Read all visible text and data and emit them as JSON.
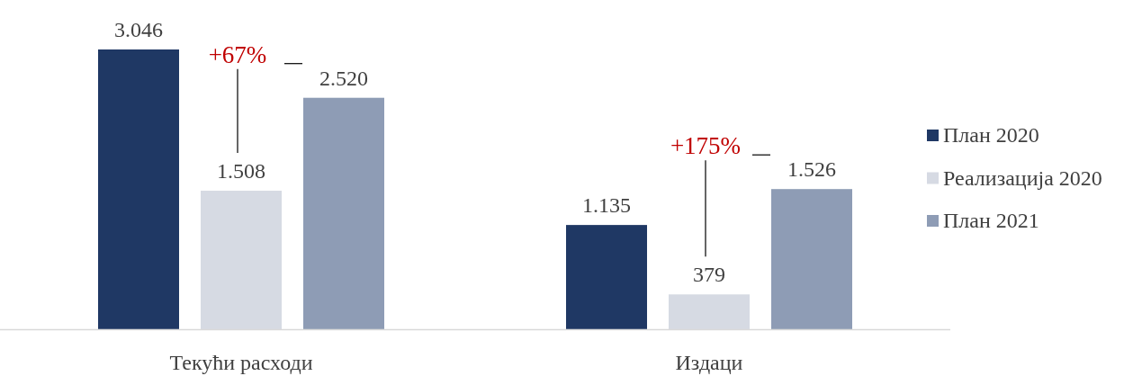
{
  "chart_data": {
    "type": "bar",
    "categories": [
      "Текући расходи",
      "Издаци"
    ],
    "series": [
      {
        "name": "План 2020",
        "color": "#1f3864",
        "values": [
          3046,
          1135
        ],
        "value_labels": [
          "3.046",
          "1.135"
        ]
      },
      {
        "name": "Реализација 2020",
        "color": "#d6dae3",
        "values": [
          1508,
          379
        ],
        "value_labels": [
          "1.508",
          "379"
        ]
      },
      {
        "name": "План 2021",
        "color": "#8e9cb5",
        "values": [
          2520,
          1526
        ],
        "value_labels": [
          "2.520",
          "1.526"
        ]
      }
    ],
    "annotations": [
      "+67%",
      "+175%"
    ],
    "legend": "right"
  }
}
